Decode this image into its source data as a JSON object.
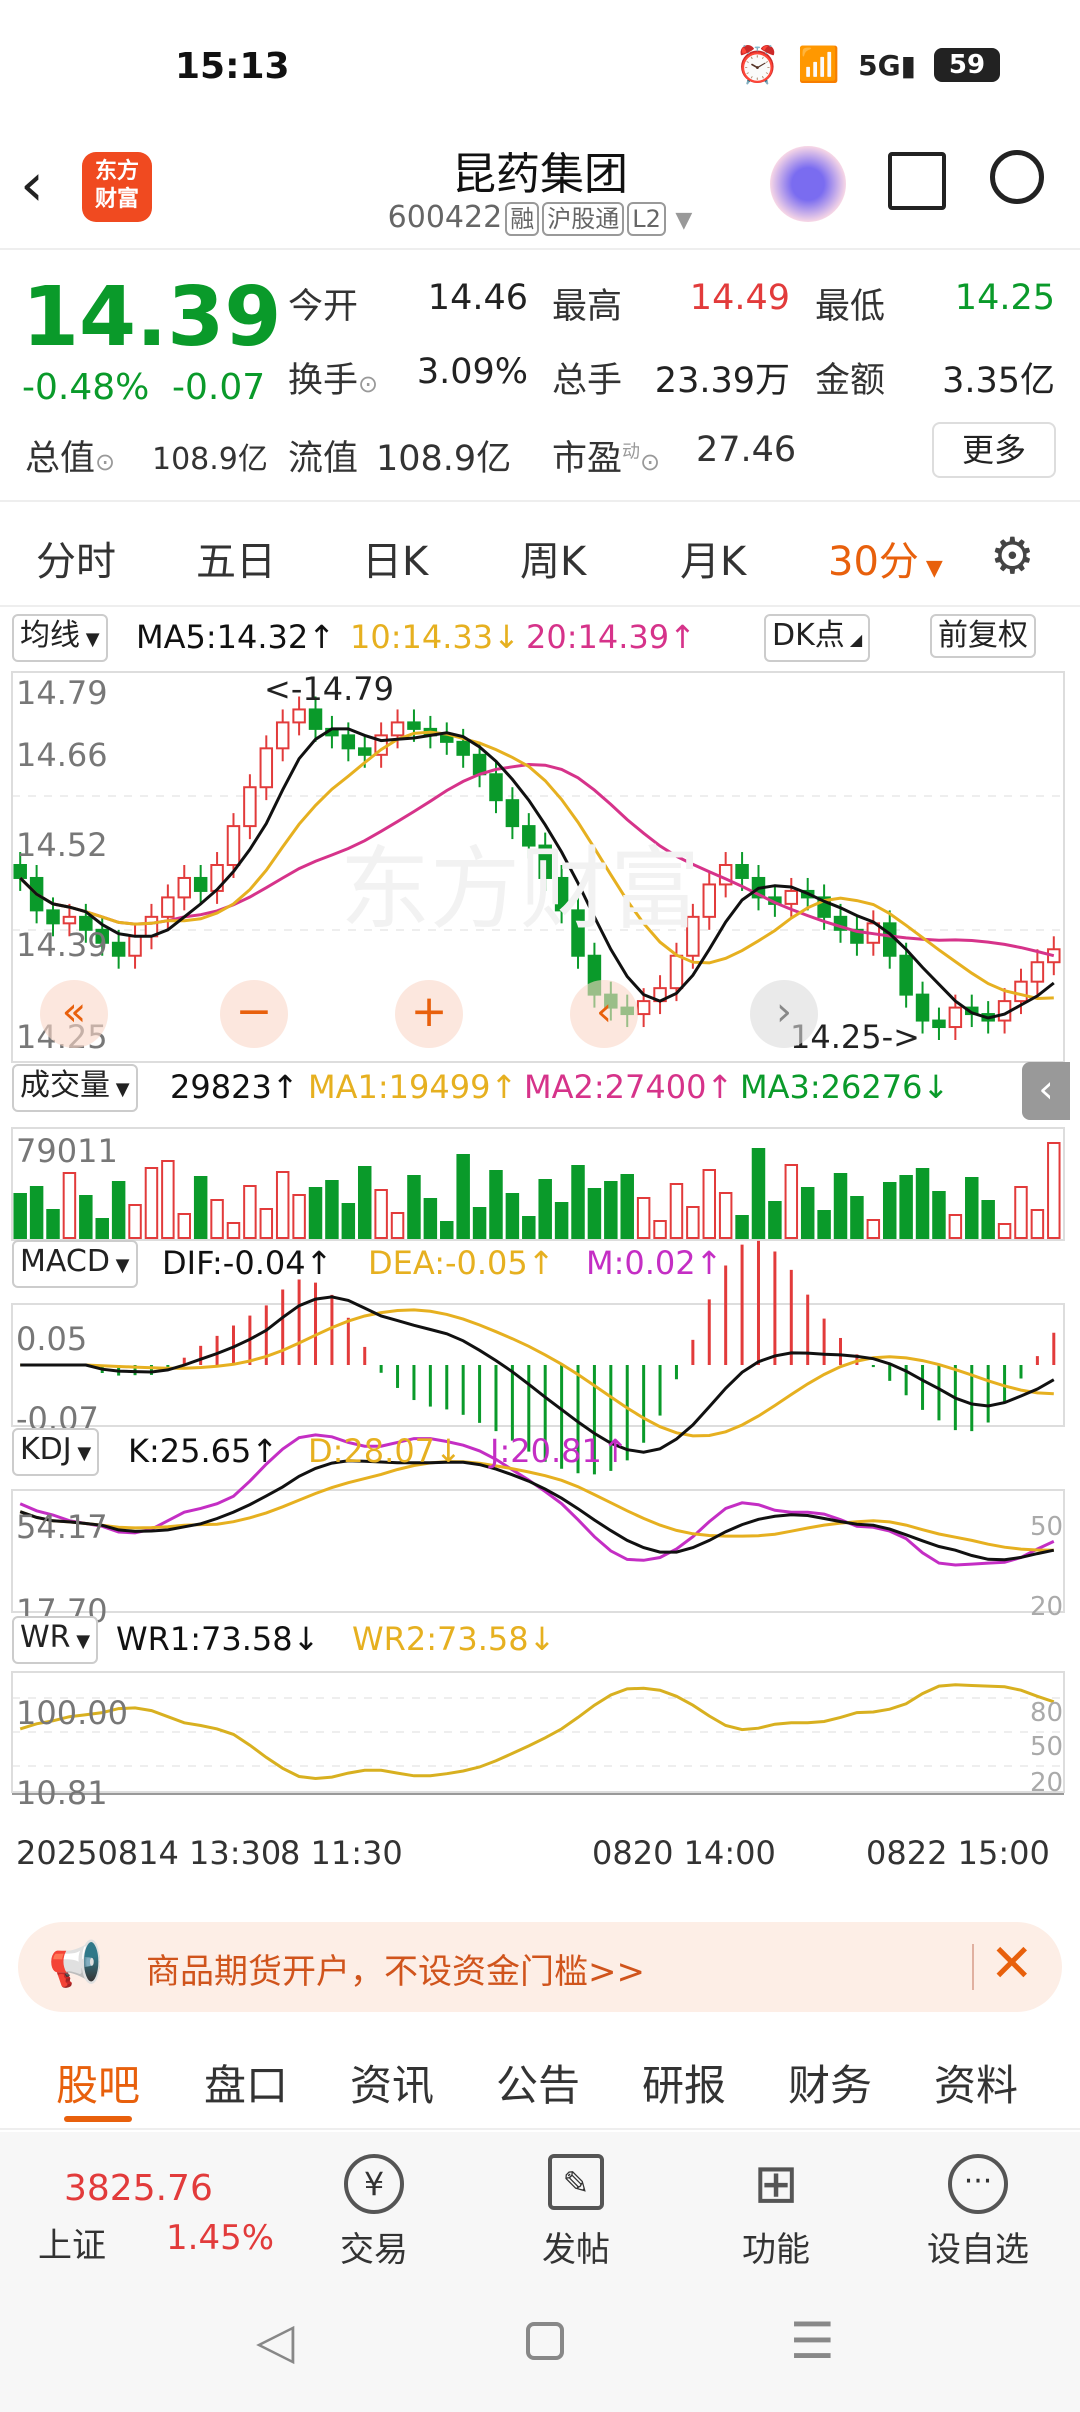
{
  "status": {
    "time": "15:13",
    "battery": "59"
  },
  "header": {
    "title": "昆药集团",
    "code": "600422",
    "tags": [
      "融",
      "沪股通",
      "L2"
    ],
    "logo_line1": "东方",
    "logo_line2": "财富"
  },
  "quote": {
    "price": "14.39",
    "change_pct": "-0.48%",
    "change": "-0.07",
    "open_label": "今开",
    "open": "14.46",
    "high_label": "最高",
    "high": "14.49",
    "low_label": "最低",
    "low": "14.25",
    "turnover_label": "换手",
    "turnover": "3.09%",
    "volume_label": "总手",
    "volume": "23.39万",
    "amount_label": "金额",
    "amount": "3.35亿",
    "mktcap_label": "总值",
    "mktcap": "108.9亿",
    "float_label": "流值",
    "float": "108.9亿",
    "pe_label": "市盈",
    "pe_sup": "动",
    "pe": "27.46",
    "more": "更多"
  },
  "tabs": [
    "分时",
    "五日",
    "日K",
    "周K",
    "月K",
    "30分"
  ],
  "indicators": {
    "ma": {
      "sel": "均线",
      "ma5": "MA5:14.32↑",
      "ma10": "10:14.33↓",
      "ma20": "20:14.39↑",
      "dk": "DK点",
      "fq": "前复权"
    },
    "vol": {
      "sel": "成交量",
      "v": "29823↑",
      "ma1": "MA1:19499↑",
      "ma2": "MA2:27400↑",
      "ma3": "MA3:26276↓",
      "max": "79011"
    },
    "macd": {
      "sel": "MACD",
      "dif": "DIF:-0.04↑",
      "dea": "DEA:-0.05↑",
      "m": "M:0.02↑",
      "top": "0.05",
      "bot": "-0.07"
    },
    "kdj": {
      "sel": "KDJ",
      "k": "K:25.65↑",
      "d": "D:28.07↓",
      "j": "J:20.81↑",
      "top": "54.17",
      "bot": "17.70",
      "r1": "50",
      "r2": "20"
    },
    "wr": {
      "sel": "WR",
      "wr1": "WR1:73.58↓",
      "wr2": "WR2:73.58↓",
      "top": "100.00",
      "bot": "10.81",
      "r1": "80",
      "r2": "50",
      "r3": "20"
    }
  },
  "kline": {
    "yticks": [
      "14.79",
      "14.66",
      "14.52",
      "14.39",
      "14.25"
    ],
    "hi_label": "<-14.79",
    "lo_label": "14.25->",
    "watermark": "东方财富",
    "xlabels": [
      "20250814 13:30",
      "8 11:30",
      "0820 14:00",
      "0822 15:00"
    ]
  },
  "chart_data": {
    "type": "candlestick",
    "y_range": [
      14.25,
      14.79
    ],
    "high": 14.79,
    "low": 14.25
  },
  "banner": {
    "text": "商品期货开户，不设资金门槛>>"
  },
  "subtabs": [
    "股吧",
    "盘口",
    "资讯",
    "公告",
    "研报",
    "财务",
    "资料"
  ],
  "bottom": {
    "index_value": "3825.76",
    "index_name": "上证",
    "index_pct": "1.45%",
    "items": [
      "交易",
      "发帖",
      "功能",
      "设自选"
    ]
  },
  "colors": {
    "up": "#e23b3b",
    "down": "#0a9a2a",
    "ma5": "#111111",
    "ma10": "#e6b020",
    "ma20": "#d6338a",
    "accent": "#e8600c"
  }
}
